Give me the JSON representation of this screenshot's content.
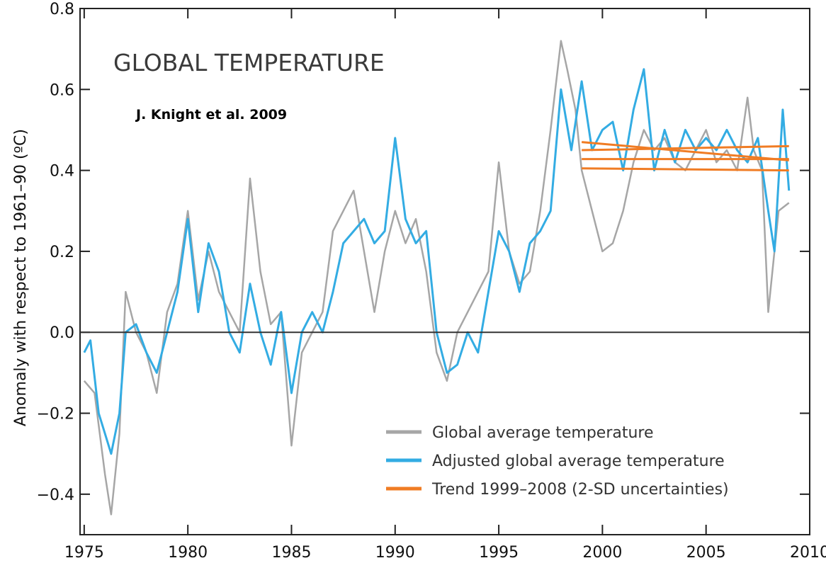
{
  "chart_data": {
    "type": "line",
    "title": "GLOBAL TEMPERATURE",
    "annotation": "J. Knight et al. 2009",
    "xlabel": "",
    "ylabel": "Anomaly with respect to 1961–90 (ºC)",
    "xlim": [
      1974.8,
      2010
    ],
    "ylim": [
      -0.5,
      0.8
    ],
    "x_ticks": [
      1975,
      1980,
      1985,
      1990,
      1995,
      2000,
      2005,
      2010
    ],
    "y_ticks": [
      -0.4,
      -0.2,
      0.0,
      0.2,
      0.4,
      0.6,
      0.8
    ],
    "y_tick_labels": [
      "−0.4",
      "−0.2",
      "0.0",
      "0.2",
      "0.4",
      "0.6",
      "0.8"
    ],
    "zero_line": true,
    "legend_position": "bottom-right",
    "series": [
      {
        "name": "Global average temperature",
        "color": "#a6a6a6",
        "x": [
          1975.0,
          1975.5,
          1976.0,
          1976.3,
          1976.7,
          1977.0,
          1977.5,
          1978.0,
          1978.5,
          1979.0,
          1979.5,
          1980.0,
          1980.5,
          1981.0,
          1981.5,
          1982.0,
          1982.5,
          1983.0,
          1983.5,
          1984.0,
          1984.5,
          1985.0,
          1985.5,
          1986.0,
          1986.5,
          1987.0,
          1987.5,
          1988.0,
          1988.5,
          1989.0,
          1989.5,
          1990.0,
          1990.5,
          1991.0,
          1991.5,
          1992.0,
          1992.5,
          1993.0,
          1993.5,
          1994.0,
          1994.5,
          1995.0,
          1995.5,
          1996.0,
          1996.5,
          1997.0,
          1997.5,
          1998.0,
          1998.3,
          1998.7,
          1999.0,
          1999.5,
          2000.0,
          2000.5,
          2001.0,
          2001.5,
          2002.0,
          2002.5,
          2003.0,
          2003.5,
          2004.0,
          2004.5,
          2005.0,
          2005.5,
          2006.0,
          2006.5,
          2007.0,
          2007.3,
          2007.7,
          2008.0,
          2008.5,
          2009.0
        ],
        "values": [
          -0.12,
          -0.15,
          -0.35,
          -0.45,
          -0.25,
          0.1,
          0.0,
          -0.05,
          -0.15,
          0.05,
          0.12,
          0.3,
          0.08,
          0.2,
          0.1,
          0.05,
          0.0,
          0.38,
          0.15,
          0.02,
          0.05,
          -0.28,
          -0.05,
          0.0,
          0.05,
          0.25,
          0.3,
          0.35,
          0.2,
          0.05,
          0.2,
          0.3,
          0.22,
          0.28,
          0.15,
          -0.05,
          -0.12,
          0.0,
          0.05,
          0.1,
          0.15,
          0.42,
          0.2,
          0.12,
          0.15,
          0.3,
          0.5,
          0.72,
          0.65,
          0.55,
          0.4,
          0.3,
          0.2,
          0.22,
          0.3,
          0.42,
          0.5,
          0.45,
          0.48,
          0.42,
          0.4,
          0.45,
          0.5,
          0.42,
          0.45,
          0.4,
          0.58,
          0.45,
          0.4,
          0.05,
          0.3,
          0.32
        ]
      },
      {
        "name": "Adjusted global average temperature",
        "color": "#33ace3",
        "x": [
          1975.0,
          1975.3,
          1975.7,
          1976.0,
          1976.3,
          1976.7,
          1977.0,
          1977.5,
          1978.0,
          1978.5,
          1979.0,
          1979.5,
          1980.0,
          1980.5,
          1981.0,
          1981.5,
          1982.0,
          1982.5,
          1983.0,
          1983.5,
          1984.0,
          1984.5,
          1985.0,
          1985.5,
          1986.0,
          1986.5,
          1987.0,
          1987.5,
          1988.0,
          1988.5,
          1989.0,
          1989.5,
          1990.0,
          1990.5,
          1991.0,
          1991.5,
          1992.0,
          1992.5,
          1993.0,
          1993.5,
          1994.0,
          1994.5,
          1995.0,
          1995.5,
          1996.0,
          1996.5,
          1997.0,
          1997.5,
          1998.0,
          1998.5,
          1999.0,
          1999.5,
          2000.0,
          2000.5,
          2001.0,
          2001.5,
          2002.0,
          2002.5,
          2003.0,
          2003.5,
          2004.0,
          2004.5,
          2005.0,
          2005.5,
          2006.0,
          2006.5,
          2007.0,
          2007.5,
          2008.0,
          2008.3,
          2008.7,
          2009.0
        ],
        "values": [
          -0.05,
          -0.02,
          -0.2,
          -0.25,
          -0.3,
          -0.2,
          0.0,
          0.02,
          -0.05,
          -0.1,
          0.0,
          0.1,
          0.28,
          0.05,
          0.22,
          0.15,
          0.0,
          -0.05,
          0.12,
          0.0,
          -0.08,
          0.05,
          -0.15,
          0.0,
          0.05,
          0.0,
          0.1,
          0.22,
          0.25,
          0.28,
          0.22,
          0.25,
          0.48,
          0.28,
          0.22,
          0.25,
          0.0,
          -0.1,
          -0.08,
          0.0,
          -0.05,
          0.1,
          0.25,
          0.2,
          0.1,
          0.22,
          0.25,
          0.3,
          0.6,
          0.45,
          0.62,
          0.45,
          0.5,
          0.52,
          0.4,
          0.55,
          0.65,
          0.4,
          0.5,
          0.42,
          0.5,
          0.45,
          0.48,
          0.45,
          0.5,
          0.45,
          0.42,
          0.48,
          0.3,
          0.2,
          0.55,
          0.35
        ]
      },
      {
        "name": "Trend 1999–2008 (2-SD uncertainties)",
        "color": "#f07c24",
        "lines": [
          {
            "x": [
              1999.0,
              2009.0
            ],
            "values": [
              0.405,
              0.4
            ]
          },
          {
            "x": [
              1999.0,
              2009.0
            ],
            "values": [
              0.428,
              0.428
            ]
          },
          {
            "x": [
              1999.0,
              2009.0
            ],
            "values": [
              0.45,
              0.46
            ]
          },
          {
            "x": [
              1999.0,
              2009.0
            ],
            "values": [
              0.47,
              0.425
            ]
          }
        ]
      }
    ]
  }
}
